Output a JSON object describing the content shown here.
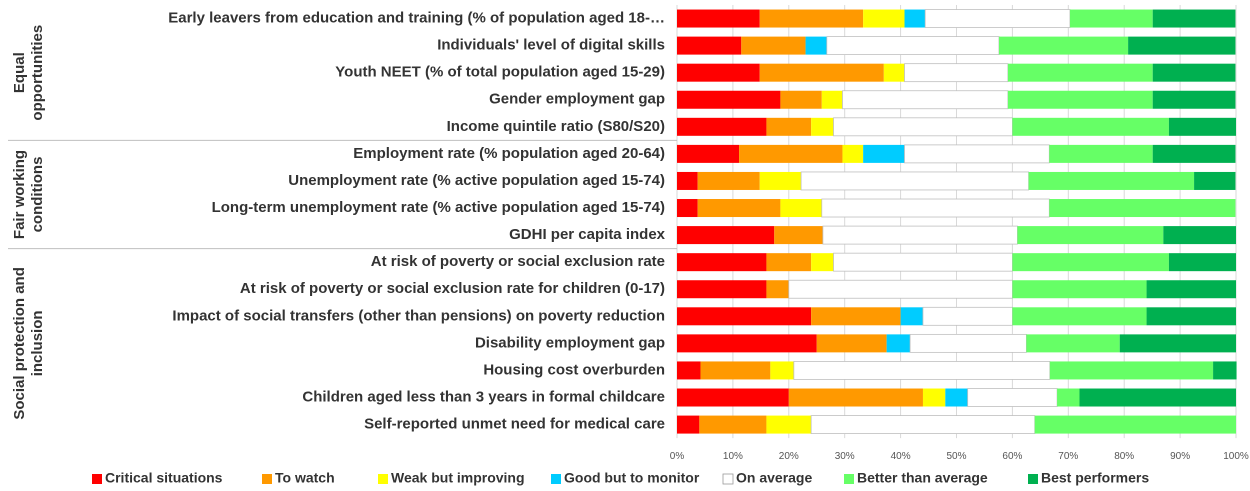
{
  "chart_data": {
    "type": "bar",
    "orientation": "horizontal",
    "stacked": true,
    "categories": [
      "Early leavers from education and training (% of population aged 18-…",
      "Individuals' level of digital skills",
      "Youth NEET (% of total population aged 15-29)",
      "Gender employment gap",
      "Income quintile ratio (S80/S20)",
      "Employment rate (% population aged 20-64)",
      "Unemployment rate (% active population aged 15-74)",
      "Long-term unemployment rate (% active population aged 15-74)",
      "GDHI per capita index",
      "At risk of poverty or social exclusion rate",
      "At risk of poverty or social exclusion rate for children (0-17)",
      "Impact of social transfers (other than pensions) on poverty reduction",
      "Disability employment gap",
      "Housing cost overburden",
      "Children aged less than 3 years in formal childcare",
      "Self-reported unmet need for medical care"
    ],
    "groups": [
      {
        "lines": [
          "Equal",
          "opportunities"
        ]
      },
      {
        "lines": [
          "Fair working",
          "conditions"
        ]
      },
      {
        "lines": [
          "Social protection and",
          "inclusion"
        ]
      }
    ],
    "series": [
      {
        "name": "Critical situations",
        "color": "#ff0000",
        "values": [
          14.8,
          11.5,
          14.8,
          18.5,
          16,
          11.1,
          3.7,
          3.7,
          17.4,
          16,
          16,
          24,
          25,
          4.2,
          20,
          4
        ]
      },
      {
        "name": "To watch",
        "color": "#ff9900",
        "values": [
          18.5,
          11.5,
          22.2,
          7.4,
          8,
          18.5,
          11.1,
          14.8,
          8.7,
          8,
          4,
          16,
          12.5,
          12.5,
          24,
          12
        ]
      },
      {
        "name": "Weak but improving",
        "color": "#ffff00",
        "values": [
          7.4,
          0,
          3.7,
          3.7,
          4,
          3.7,
          7.4,
          7.4,
          0,
          4,
          0,
          0,
          0,
          4.2,
          4,
          8
        ]
      },
      {
        "name": "Good but to monitor",
        "color": "#00ccff",
        "values": [
          3.7,
          3.8,
          0,
          0,
          0,
          7.4,
          0,
          0,
          0,
          0,
          0,
          4,
          4.2,
          0,
          4,
          0
        ]
      },
      {
        "name": "On average",
        "color": "#ffffff",
        "values": [
          25.9,
          30.8,
          18.5,
          29.6,
          32,
          25.9,
          40.7,
          40.7,
          34.8,
          32,
          40,
          16,
          20.8,
          45.8,
          16,
          40
        ]
      },
      {
        "name": "Better than average",
        "color": "#66ff66",
        "values": [
          14.8,
          23.1,
          25.9,
          25.9,
          28,
          18.5,
          29.6,
          33.3,
          26.1,
          28,
          24,
          24,
          16.7,
          29.2,
          4,
          36
        ]
      },
      {
        "name": "Best performers",
        "color": "#00b050",
        "values": [
          14.8,
          19.2,
          14.8,
          14.8,
          12,
          14.8,
          7.4,
          0,
          13,
          12,
          16,
          16,
          20.8,
          4.2,
          28,
          0
        ]
      }
    ],
    "xlim": [
      0,
      100
    ],
    "xticks": [
      {
        "value": 0,
        "label": "0%"
      },
      {
        "value": 10,
        "label": "10%"
      },
      {
        "value": 20,
        "label": "20%"
      },
      {
        "value": 30,
        "label": "30%"
      },
      {
        "value": 40,
        "label": "40%"
      },
      {
        "value": 50,
        "label": "50%"
      },
      {
        "value": 60,
        "label": "60%"
      },
      {
        "value": 70,
        "label": "70%"
      },
      {
        "value": 80,
        "label": "80%"
      },
      {
        "value": 90,
        "label": "90%"
      },
      {
        "value": 100,
        "label": "100%"
      }
    ],
    "grid": true,
    "legend": "bottom"
  }
}
